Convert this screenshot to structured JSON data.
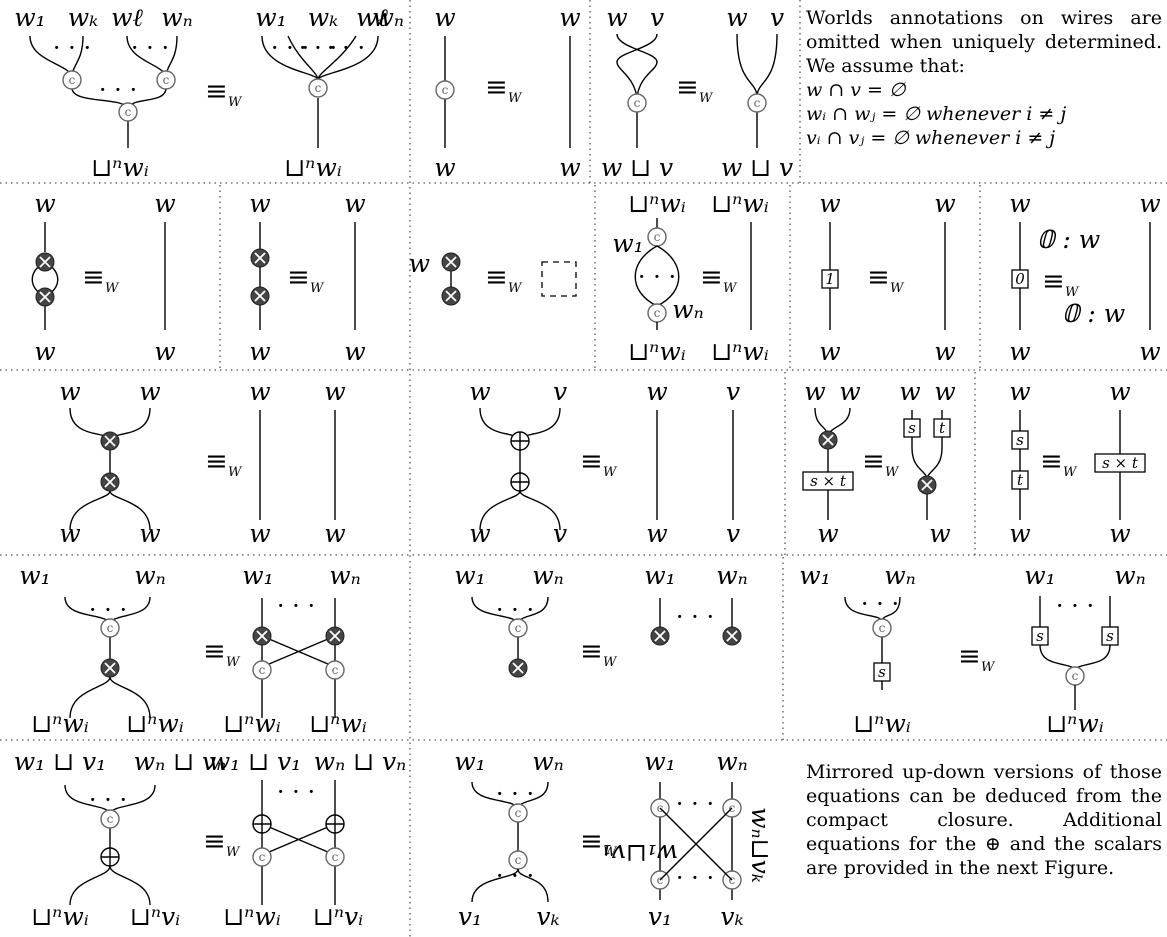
{
  "symbols": {
    "copy": "c",
    "delete": "⊗",
    "plus": "⊕",
    "dots": "· · ·",
    "equiv": "≡",
    "equiv_sub": "W",
    "dashed_box": "empty diagram"
  },
  "notes": {
    "top": {
      "text": "Worlds annotations on wires are omitted when uniquely determined. We assume that:",
      "cond1": "w ∩ v = ∅",
      "cond2": "wᵢ ∩ wⱼ = ∅ whenever i ≠ j",
      "cond3": "vᵢ ∩ vⱼ = ∅ whenever i ≠ j"
    },
    "bottom": {
      "text": "Mirrored up-down versions of those equations can be deduced from the compact closure. Additional equations for the ⊕ and the scalars are provided in the next Figure."
    }
  },
  "labels": {
    "w": "w",
    "v": "v",
    "w1": "w₁",
    "wk": "wₖ",
    "wl": "wℓ",
    "wn": "wₙ",
    "v1": "v₁",
    "vk": "vₖ",
    "join_wi": "⊔ⁿwᵢ",
    "join_vi": "⊔ⁿvᵢ",
    "w_join_v": "w ⊔ v",
    "w1_join_v1": "w₁ ⊔ v₁",
    "wn_join_vn": "wₙ ⊔ vₙ",
    "w1_join_v1_rot": "w₁⊔v₁",
    "wn_join_vn_rot": "wₙ⊔vₖ",
    "zero_w": "𝟘 : w",
    "one": "1",
    "zero": "0",
    "s": "s",
    "t": "t",
    "s_times_t": "s × t"
  }
}
